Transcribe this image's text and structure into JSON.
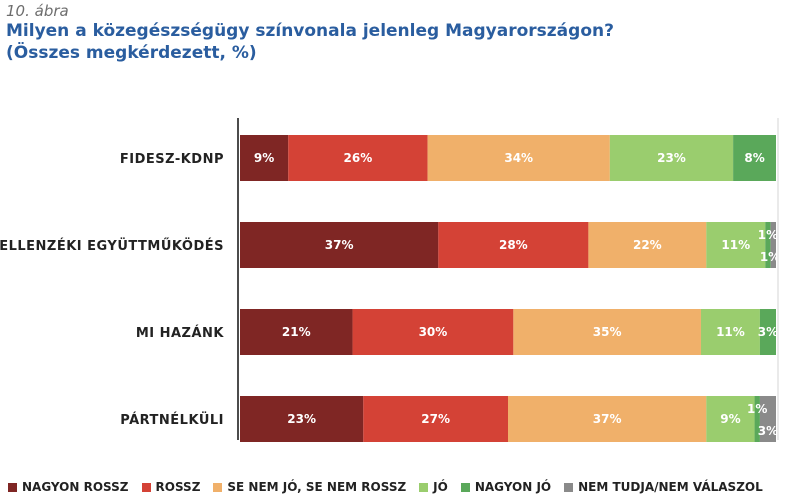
{
  "figure_label": "10. ábra",
  "title_line1": "Milyen a közegészségügy színvonala jelenleg Magyarországon?",
  "title_line2": "(Összes megkérdezett, %)",
  "colors": {
    "nagyon_rossz": "#7f2624",
    "rossz": "#d44236",
    "kozepes": "#f0b06a",
    "jo": "#9acd6e",
    "nagyon_jo": "#5aa85a",
    "nem_tudja": "#8a8a8a"
  },
  "chart_data": {
    "type": "bar",
    "orientation": "horizontal",
    "stacked": true,
    "xlim": [
      0,
      100
    ],
    "categories": [
      "FIDESZ-KDNP",
      "ELLENZÉKI EGYÜTTMŰKÖDÉS",
      "MI HAZÁNK",
      "PÁRTNÉLKÜLI"
    ],
    "series": [
      {
        "name": "NAGYON ROSSZ",
        "color": "#7f2624",
        "values": [
          9,
          37,
          21,
          23
        ],
        "labels": [
          "9%",
          "37%",
          "21%",
          "23%"
        ]
      },
      {
        "name": "ROSSZ",
        "color": "#d44236",
        "values": [
          26,
          28,
          30,
          27
        ],
        "labels": [
          "26%",
          "28%",
          "30%",
          "27%"
        ]
      },
      {
        "name": "SE NEM JÓ, SE NEM ROSSZ",
        "color": "#f0b06a",
        "values": [
          34,
          22,
          35,
          37
        ],
        "labels": [
          "34%",
          "22%",
          "35%",
          "37%"
        ]
      },
      {
        "name": "JÓ",
        "color": "#9acd6e",
        "values": [
          23,
          11,
          11,
          9
        ],
        "labels": [
          "23%",
          "11%",
          "11%",
          "9%"
        ]
      },
      {
        "name": "NAGYON JÓ",
        "color": "#5aa85a",
        "values": [
          8,
          1,
          3,
          1
        ],
        "labels": [
          "8%",
          "1%",
          "3%",
          "1%"
        ]
      },
      {
        "name": "NEM TUDJA/NEM VÁLASZOL",
        "color": "#8a8a8a",
        "values": [
          0,
          1,
          0,
          3
        ],
        "labels": [
          "",
          "1%",
          "",
          "3%"
        ]
      }
    ],
    "legend_position": "bottom",
    "grid": false
  }
}
